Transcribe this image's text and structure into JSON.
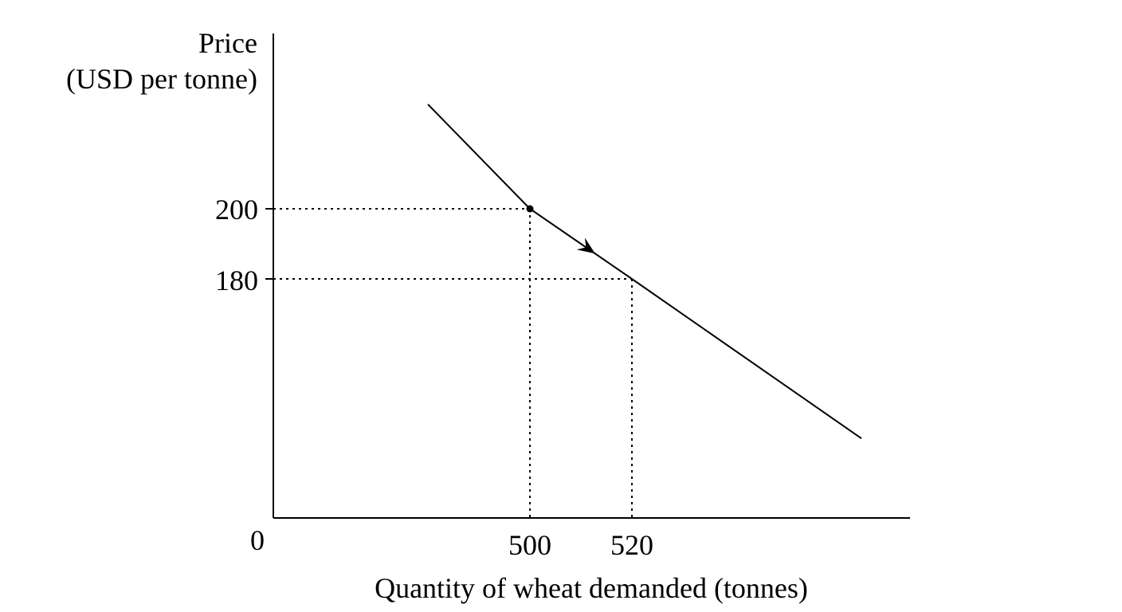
{
  "chart_data": {
    "type": "line",
    "ylabel_lines": [
      "Price",
      "(USD per tonne)"
    ],
    "xlabel": "Quantity of wheat demanded (tonnes)",
    "origin_label": "0",
    "xlim": [
      0,
      550
    ],
    "ylim": [
      0,
      250
    ],
    "x_ticks": [
      {
        "value": 500,
        "label": "500"
      },
      {
        "value": 520,
        "label": "520"
      }
    ],
    "y_ticks": [
      {
        "value": 200,
        "label": "200"
      },
      {
        "value": 180,
        "label": "180"
      }
    ],
    "series": [
      {
        "values": [
          {
            "x": 480,
            "y": 229.8
          },
          {
            "x": 500,
            "y": 200
          },
          {
            "x": 520,
            "y": 180
          },
          {
            "x": 565,
            "y": 134.5
          }
        ]
      }
    ],
    "highlight_point": {
      "x": 500,
      "y": 200
    },
    "movement_arrow": {
      "from": {
        "x": 500,
        "y": 200
      },
      "to": {
        "x": 520,
        "y": 180
      }
    },
    "guides": [
      {
        "x": 500,
        "y": 200
      },
      {
        "x": 520,
        "y": 180
      }
    ],
    "grid": false,
    "legend": "none"
  }
}
